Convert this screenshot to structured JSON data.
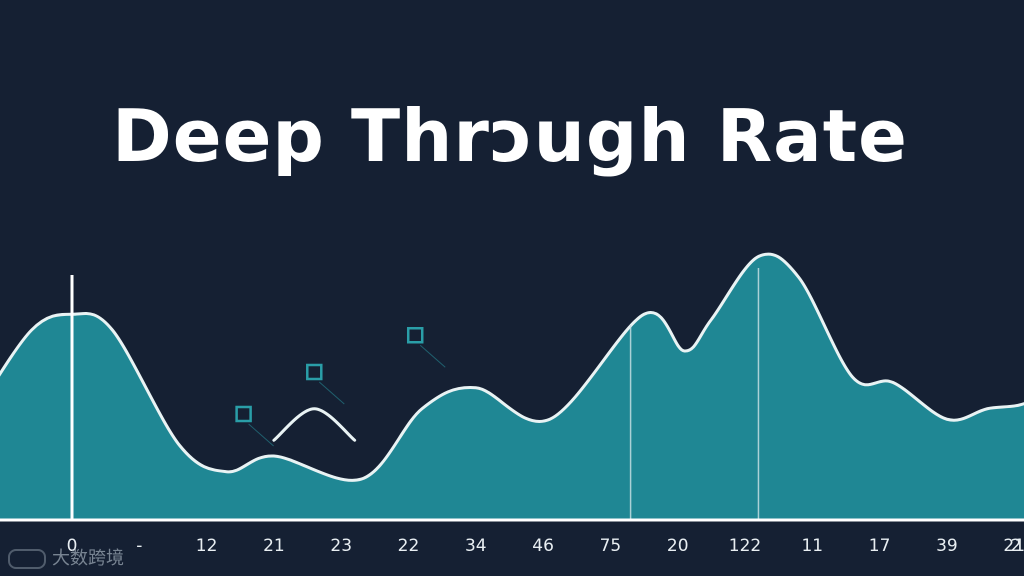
{
  "colors": {
    "background": "#152033",
    "area_fill": "#1f8794",
    "area_stroke": "#e9f3f4",
    "marker": "#2a9ea8",
    "axis": "#ffffff"
  },
  "watermark": "大数跨境",
  "chart_data": {
    "type": "area",
    "title": "Deep Thrɔugh Rate",
    "xlabel": "",
    "ylabel": "",
    "x_tick_labels": [
      "0",
      "-",
      "12",
      "21",
      "23",
      "22",
      "34",
      "46",
      "75",
      "20",
      "122",
      "11",
      "17",
      "39",
      "21",
      "2"
    ],
    "series": [
      {
        "x": [
          -1.4,
          -0.6,
          0,
          0.6,
          1.6,
          2.3,
          3.0,
          4.3,
          5.2,
          6.0,
          7.1,
          8.5,
          9.1,
          9.5,
          10.2,
          10.8,
          11.6,
          12.2,
          13.0,
          13.6,
          14.3,
          15.0,
          15.6
        ],
        "values": [
          1.05,
          1.8,
          1.95,
          1.8,
          0.7,
          0.45,
          0.6,
          0.38,
          1.05,
          1.25,
          0.95,
          1.95,
          1.6,
          1.9,
          2.5,
          2.3,
          1.35,
          1.3,
          0.95,
          1.05,
          1.15,
          1.7,
          1.6
        ]
      }
    ],
    "secondary_curve": {
      "x": [
        3.0,
        3.6,
        4.2
      ],
      "values": [
        0.75,
        1.05,
        0.75
      ]
    },
    "markers": [
      {
        "x": 2.55,
        "y": 1.0
      },
      {
        "x": 3.6,
        "y": 1.4
      },
      {
        "x": 5.1,
        "y": 1.75
      }
    ],
    "vertical_lines": [
      0,
      8.3,
      10.2
    ],
    "ylim": [
      0,
      3
    ],
    "grid": false,
    "legend": "none"
  }
}
